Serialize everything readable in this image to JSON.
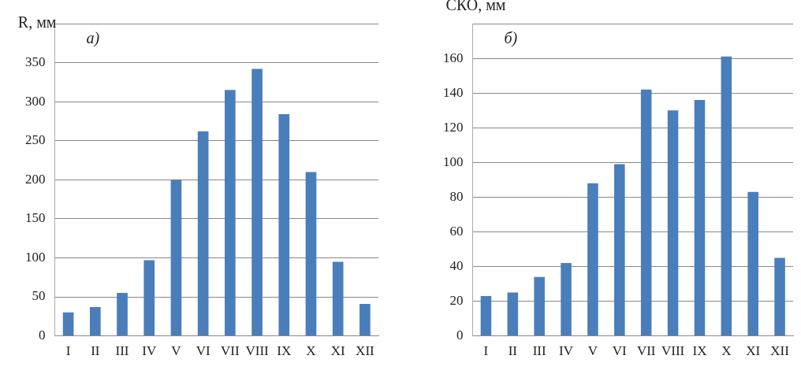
{
  "chart_data": [
    {
      "type": "bar",
      "ylabel": "R, мм",
      "annotations": [
        "а)"
      ],
      "categories": [
        "I",
        "II",
        "III",
        "IV",
        "V",
        "VI",
        "VII",
        "VIII",
        "IX",
        "X",
        "XI",
        "XII"
      ],
      "series": [
        {
          "color": "#4a7ebb",
          "values": [
            30,
            37,
            55,
            97,
            200,
            262,
            315,
            342,
            284,
            210,
            95,
            41
          ]
        }
      ],
      "ylim": [
        0,
        400
      ],
      "yticks": [
        0,
        50,
        100,
        150,
        200,
        250,
        300,
        350,
        {
          "value": 400,
          "label": null
        }
      ],
      "grid": "y",
      "legend": false
    },
    {
      "type": "bar",
      "ylabel": "СКО, мм",
      "annotations": [
        "б)"
      ],
      "categories": [
        "I",
        "II",
        "III",
        "IV",
        "V",
        "VI",
        "VII",
        "VIII",
        "IX",
        "X",
        "XI",
        "XII"
      ],
      "series": [
        {
          "color": "#4a7ebb",
          "values": [
            23,
            25,
            34,
            42,
            88,
            99,
            142,
            130,
            136,
            161,
            83,
            45
          ]
        }
      ],
      "ylim": [
        0,
        180
      ],
      "yticks": [
        0,
        20,
        40,
        60,
        80,
        100,
        120,
        140,
        160,
        {
          "value": 180,
          "label": null
        }
      ],
      "grid": "y",
      "legend": false
    }
  ]
}
